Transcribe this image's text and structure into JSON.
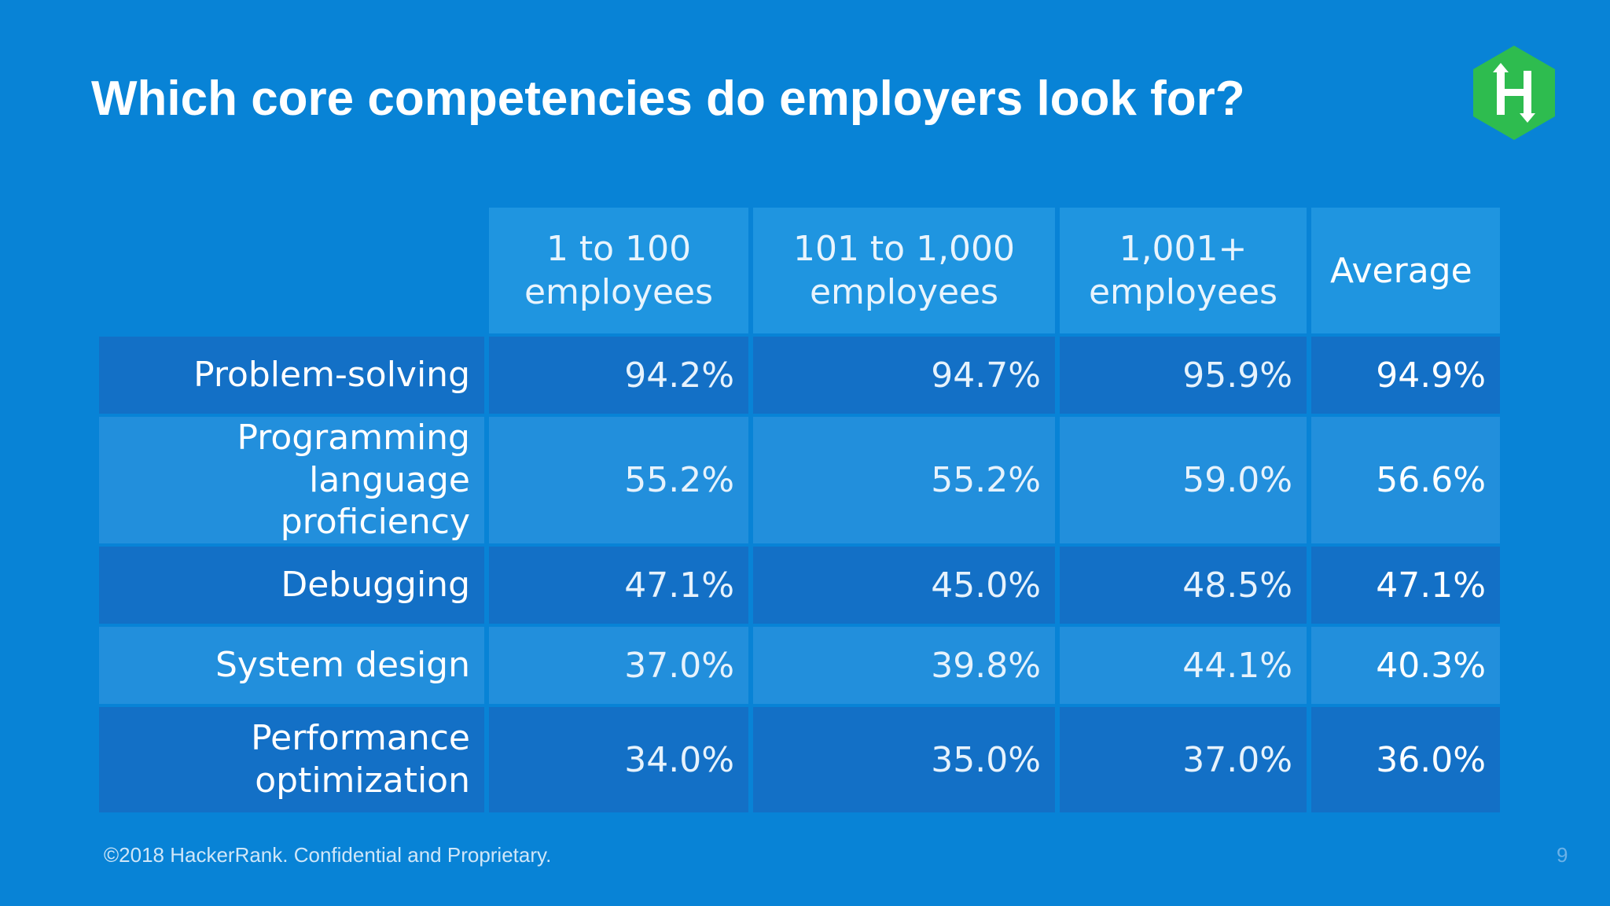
{
  "slide": {
    "title": "Which core competencies do employers look for?",
    "footer": "©2018 HackerRank. Confidential and Proprietary.",
    "page_number": "9"
  },
  "logo": {
    "letter": "H",
    "icon": "hackerrank-logo-icon",
    "color": "#2ebc4f"
  },
  "table": {
    "headers": [
      "1 to 100 employees",
      "101 to 1,000 employees",
      "1,001+ employees",
      "Average"
    ],
    "rows": [
      {
        "label": "Problem-solving",
        "values": [
          "94.2%",
          "94.7%",
          "95.9%"
        ],
        "average": "94.9%"
      },
      {
        "label": "Programming language proficiency",
        "values": [
          "55.2%",
          "55.2%",
          "59.0%"
        ],
        "average": "56.6%"
      },
      {
        "label": "Debugging",
        "values": [
          "47.1%",
          "45.0%",
          "48.5%"
        ],
        "average": "47.1%"
      },
      {
        "label": "System design",
        "values": [
          "37.0%",
          "39.8%",
          "44.1%"
        ],
        "average": "40.3%"
      },
      {
        "label": "Performance optimization",
        "values": [
          "34.0%",
          "35.0%",
          "37.0%"
        ],
        "average": "36.0%"
      }
    ]
  },
  "colors": {
    "background": "#0883d6",
    "header_cell": "#1f95e0",
    "row_dark": "#1370c6",
    "row_light": "#228fdc"
  }
}
